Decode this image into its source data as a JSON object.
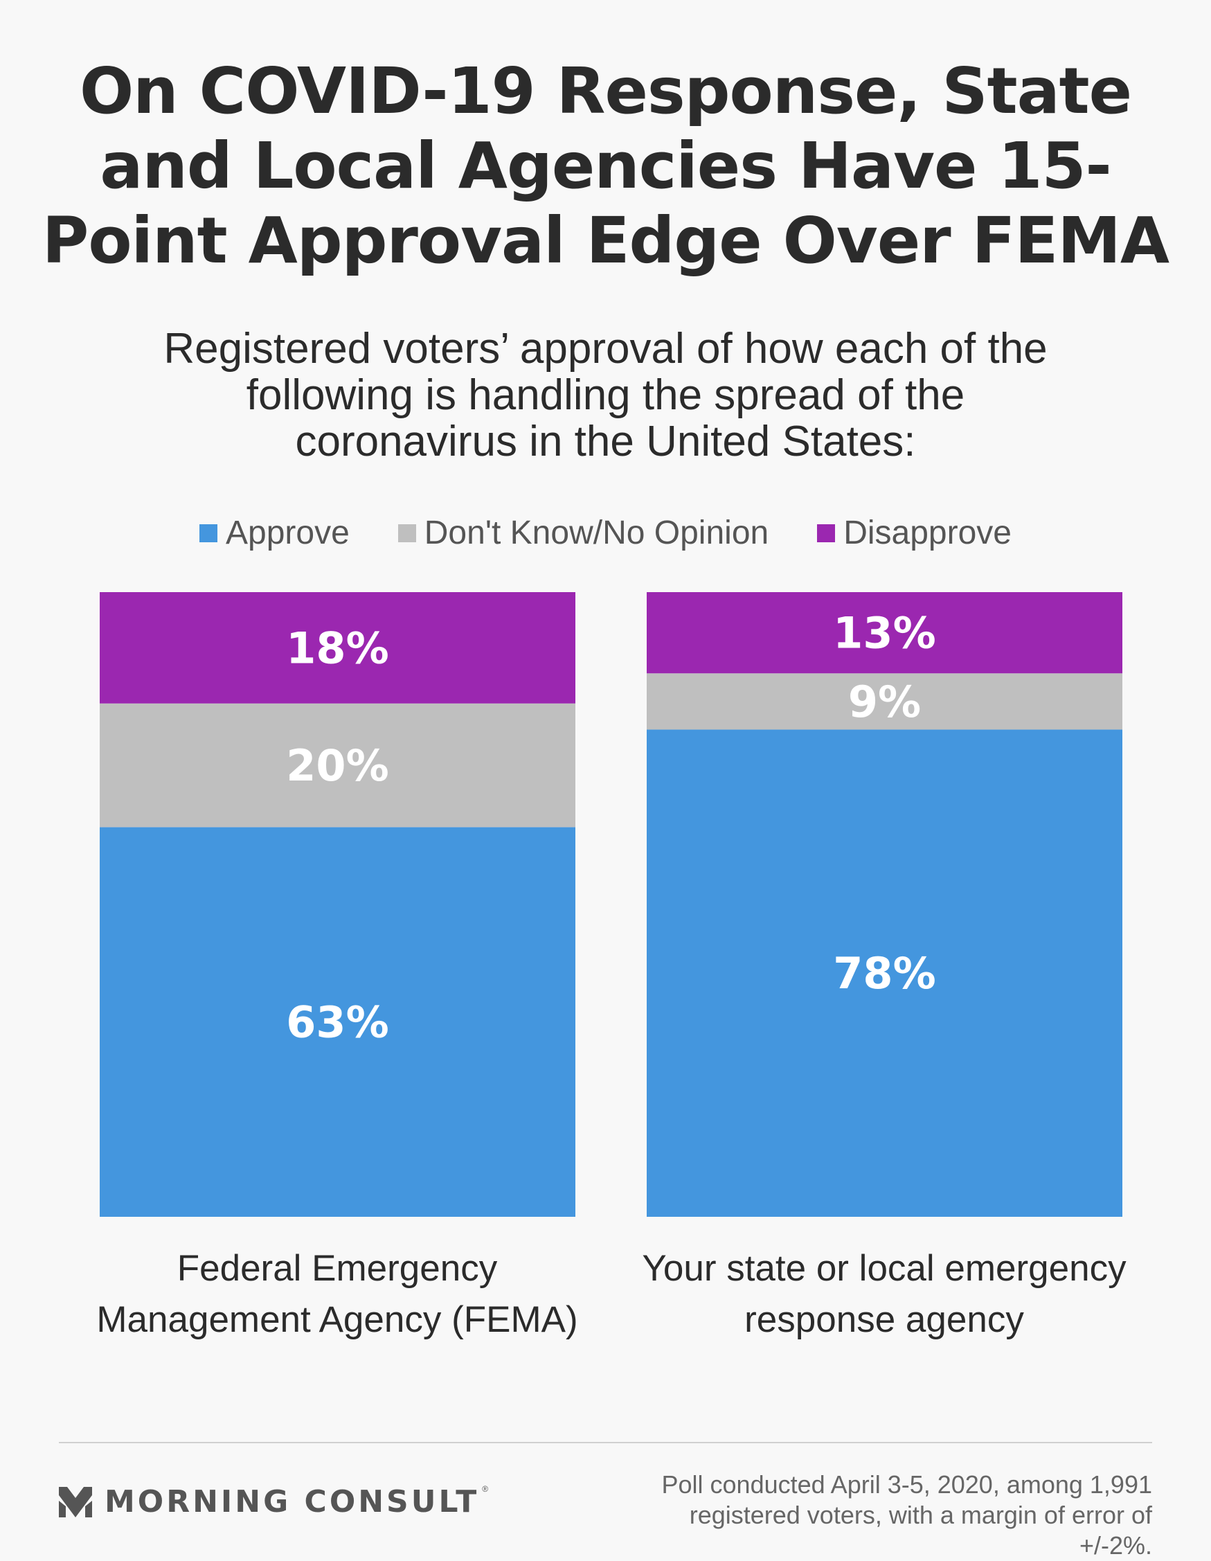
{
  "header": {
    "title": "On COVID-19 Response, State and Local Agencies Have 15-Point Approval Edge Over FEMA",
    "subtitle": "Registered voters’ approval of how each of the following is handling the spread of the coronavirus in the United States:"
  },
  "legend": [
    {
      "label": "Approve",
      "color": "#4496de"
    },
    {
      "label": "Don't Know/No Opinion",
      "color": "#bfbfbf"
    },
    {
      "label": "Disapprove",
      "color": "#9b27b0"
    }
  ],
  "chart_data": {
    "type": "bar",
    "stacked": true,
    "orientation": "vertical",
    "categories": [
      "Federal Emergency Management Agency (FEMA)",
      "Your state or local emergency response agency"
    ],
    "series": [
      {
        "name": "Approve",
        "values": [
          63,
          78
        ],
        "labels": [
          "63%",
          "78%"
        ],
        "color": "#4496de"
      },
      {
        "name": "Don't Know/No Opinion",
        "values": [
          20,
          9
        ],
        "labels": [
          "20%",
          "9%"
        ],
        "color": "#bfbfbf"
      },
      {
        "name": "Disapprove",
        "values": [
          18,
          13
        ],
        "labels": [
          "18%",
          "13%"
        ],
        "color": "#9b27b0"
      }
    ],
    "ylim": [
      0,
      100
    ],
    "grid": false,
    "legend_position": "top"
  },
  "footer": {
    "brand": "MORNING CONSULT",
    "brand_mark": "®",
    "logo_icon": "morning-consult-m-icon",
    "source_note": "Poll conducted April 3-5, 2020, among 1,991 registered voters, with a margin of error of +/-2%."
  }
}
